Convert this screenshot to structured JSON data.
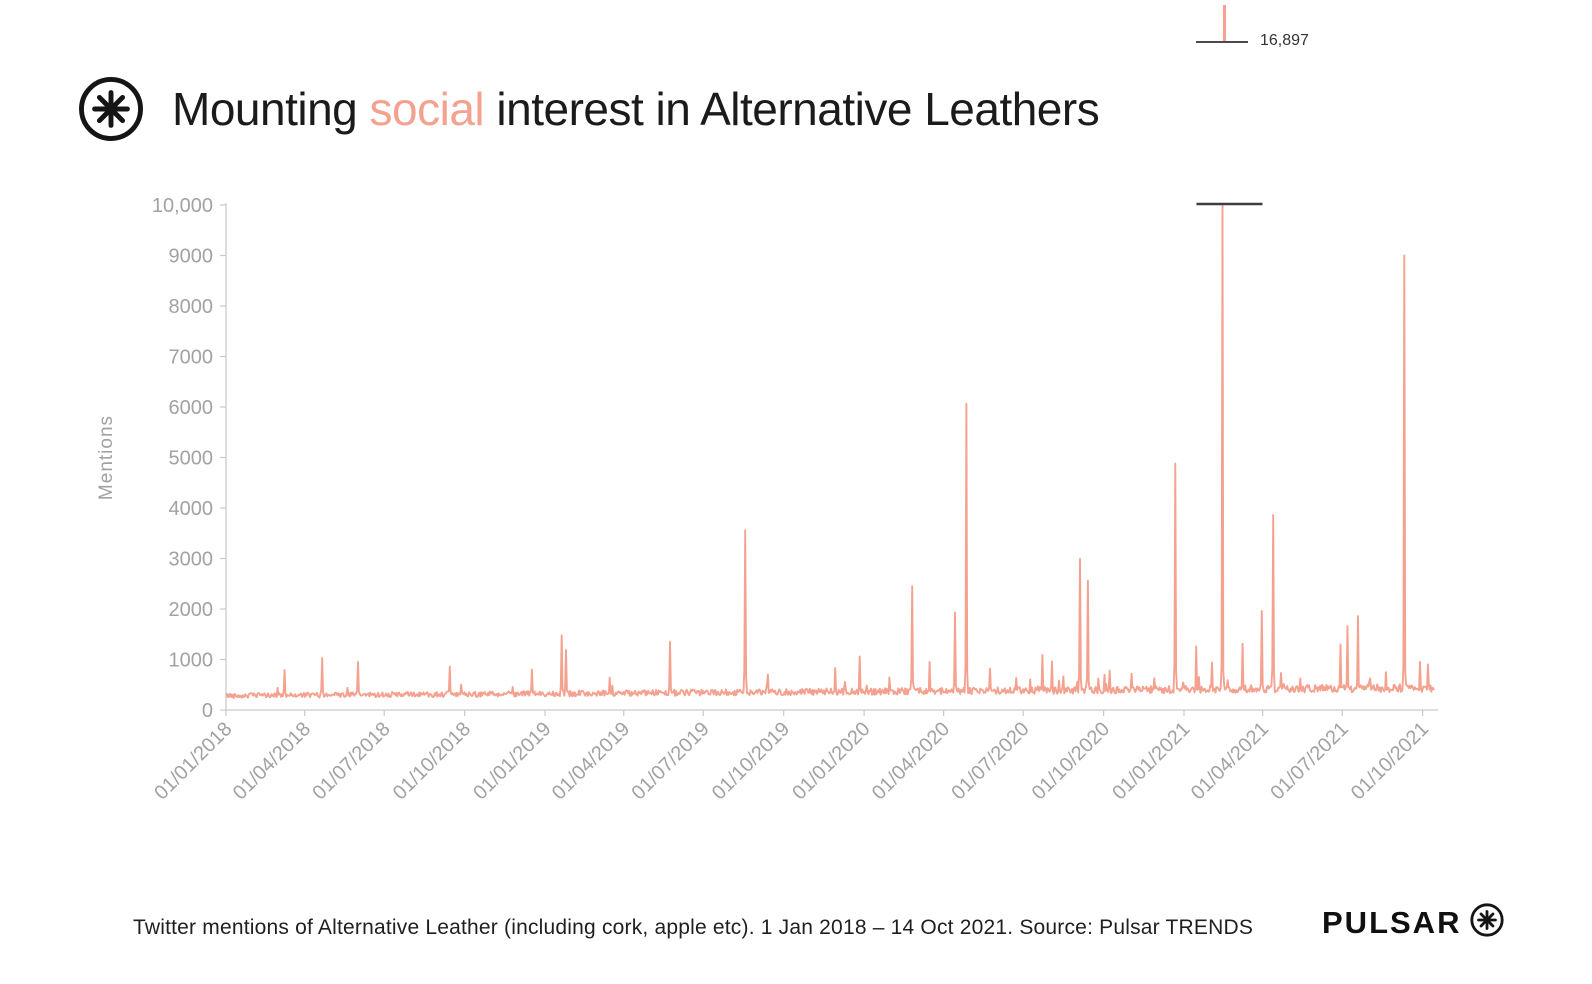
{
  "page": {
    "title_pre": "Mounting ",
    "title_highlight": "social",
    "title_post": " interest in Alternative Leathers",
    "caption": "Twitter mentions of Alternative Leather (including cork, apple etc). 1 Jan 2018 – 14 Oct 2021. Source: Pulsar TRENDS",
    "brand": "PULSAR"
  },
  "colors": {
    "accent": "#F4A28F",
    "text": "#1b1b1b",
    "axis": "#c9c9c9",
    "tick_text": "#a2a2a2",
    "cap": "#3d3d3d"
  },
  "chart_data": {
    "type": "line",
    "title": "Mounting social interest in Alternative Leathers",
    "xlabel": "",
    "ylabel": "Mentions",
    "x_start": "2018-01-01",
    "x_end": "2021-10-14",
    "ylim": [
      0,
      10000
    ],
    "grid": false,
    "legend": "none",
    "frequency": "daily",
    "y_ticks": [
      "0",
      "1000",
      "2000",
      "3000",
      "4000",
      "5000",
      "6000",
      "7000",
      "8000",
      "9000",
      "10,000"
    ],
    "x_ticks": [
      "01/01/2018",
      "01/04/2018",
      "01/07/2018",
      "01/10/2018",
      "01/01/2019",
      "01/04/2019",
      "01/07/2019",
      "01/10/2019",
      "01/01/2020",
      "01/04/2020",
      "01/07/2020",
      "01/10/2020",
      "01/01/2021",
      "01/04/2021",
      "01/07/2021",
      "01/10/2021"
    ],
    "series_name": "Twitter mentions of Alternative Leather",
    "baseline": {
      "description": "noisy daily baseline rising over time",
      "start_level": 280,
      "end_level": 430,
      "noise_start": 60,
      "noise_end": 100,
      "seed": 42
    },
    "peak_annotation": {
      "label": "16,897",
      "value": 16897,
      "date": "2021-02-14",
      "clipped_at": 10000
    },
    "spikes": [
      {
        "date": "2018-03-09",
        "value": 790
      },
      {
        "date": "2018-04-21",
        "value": 1030
      },
      {
        "date": "2018-06-01",
        "value": 950
      },
      {
        "date": "2018-09-14",
        "value": 860
      },
      {
        "date": "2018-12-17",
        "value": 800
      },
      {
        "date": "2019-01-20",
        "value": 1480
      },
      {
        "date": "2019-01-25",
        "value": 1190
      },
      {
        "date": "2019-03-16",
        "value": 640
      },
      {
        "date": "2019-05-24",
        "value": 1350
      },
      {
        "date": "2019-08-18",
        "value": 3560
      },
      {
        "date": "2019-09-13",
        "value": 700
      },
      {
        "date": "2019-11-29",
        "value": 830
      },
      {
        "date": "2019-12-27",
        "value": 1060
      },
      {
        "date": "2020-02-25",
        "value": 2450
      },
      {
        "date": "2020-03-16",
        "value": 950
      },
      {
        "date": "2020-04-14",
        "value": 1930
      },
      {
        "date": "2020-04-27",
        "value": 6060
      },
      {
        "date": "2020-05-24",
        "value": 820
      },
      {
        "date": "2020-07-23",
        "value": 1090
      },
      {
        "date": "2020-08-03",
        "value": 960
      },
      {
        "date": "2020-09-04",
        "value": 2990
      },
      {
        "date": "2020-09-13",
        "value": 2560
      },
      {
        "date": "2020-10-08",
        "value": 780
      },
      {
        "date": "2020-12-22",
        "value": 4880
      },
      {
        "date": "2021-01-15",
        "value": 1260
      },
      {
        "date": "2021-02-02",
        "value": 940
      },
      {
        "date": "2021-02-14",
        "value": 16897
      },
      {
        "date": "2021-03-09",
        "value": 1310
      },
      {
        "date": "2021-03-31",
        "value": 1960
      },
      {
        "date": "2021-04-13",
        "value": 3860
      },
      {
        "date": "2021-06-29",
        "value": 1300
      },
      {
        "date": "2021-07-07",
        "value": 1660
      },
      {
        "date": "2021-07-19",
        "value": 1860
      },
      {
        "date": "2021-09-10",
        "value": 9000
      },
      {
        "date": "2021-09-28",
        "value": 950
      },
      {
        "date": "2021-10-07",
        "value": 900
      }
    ]
  }
}
